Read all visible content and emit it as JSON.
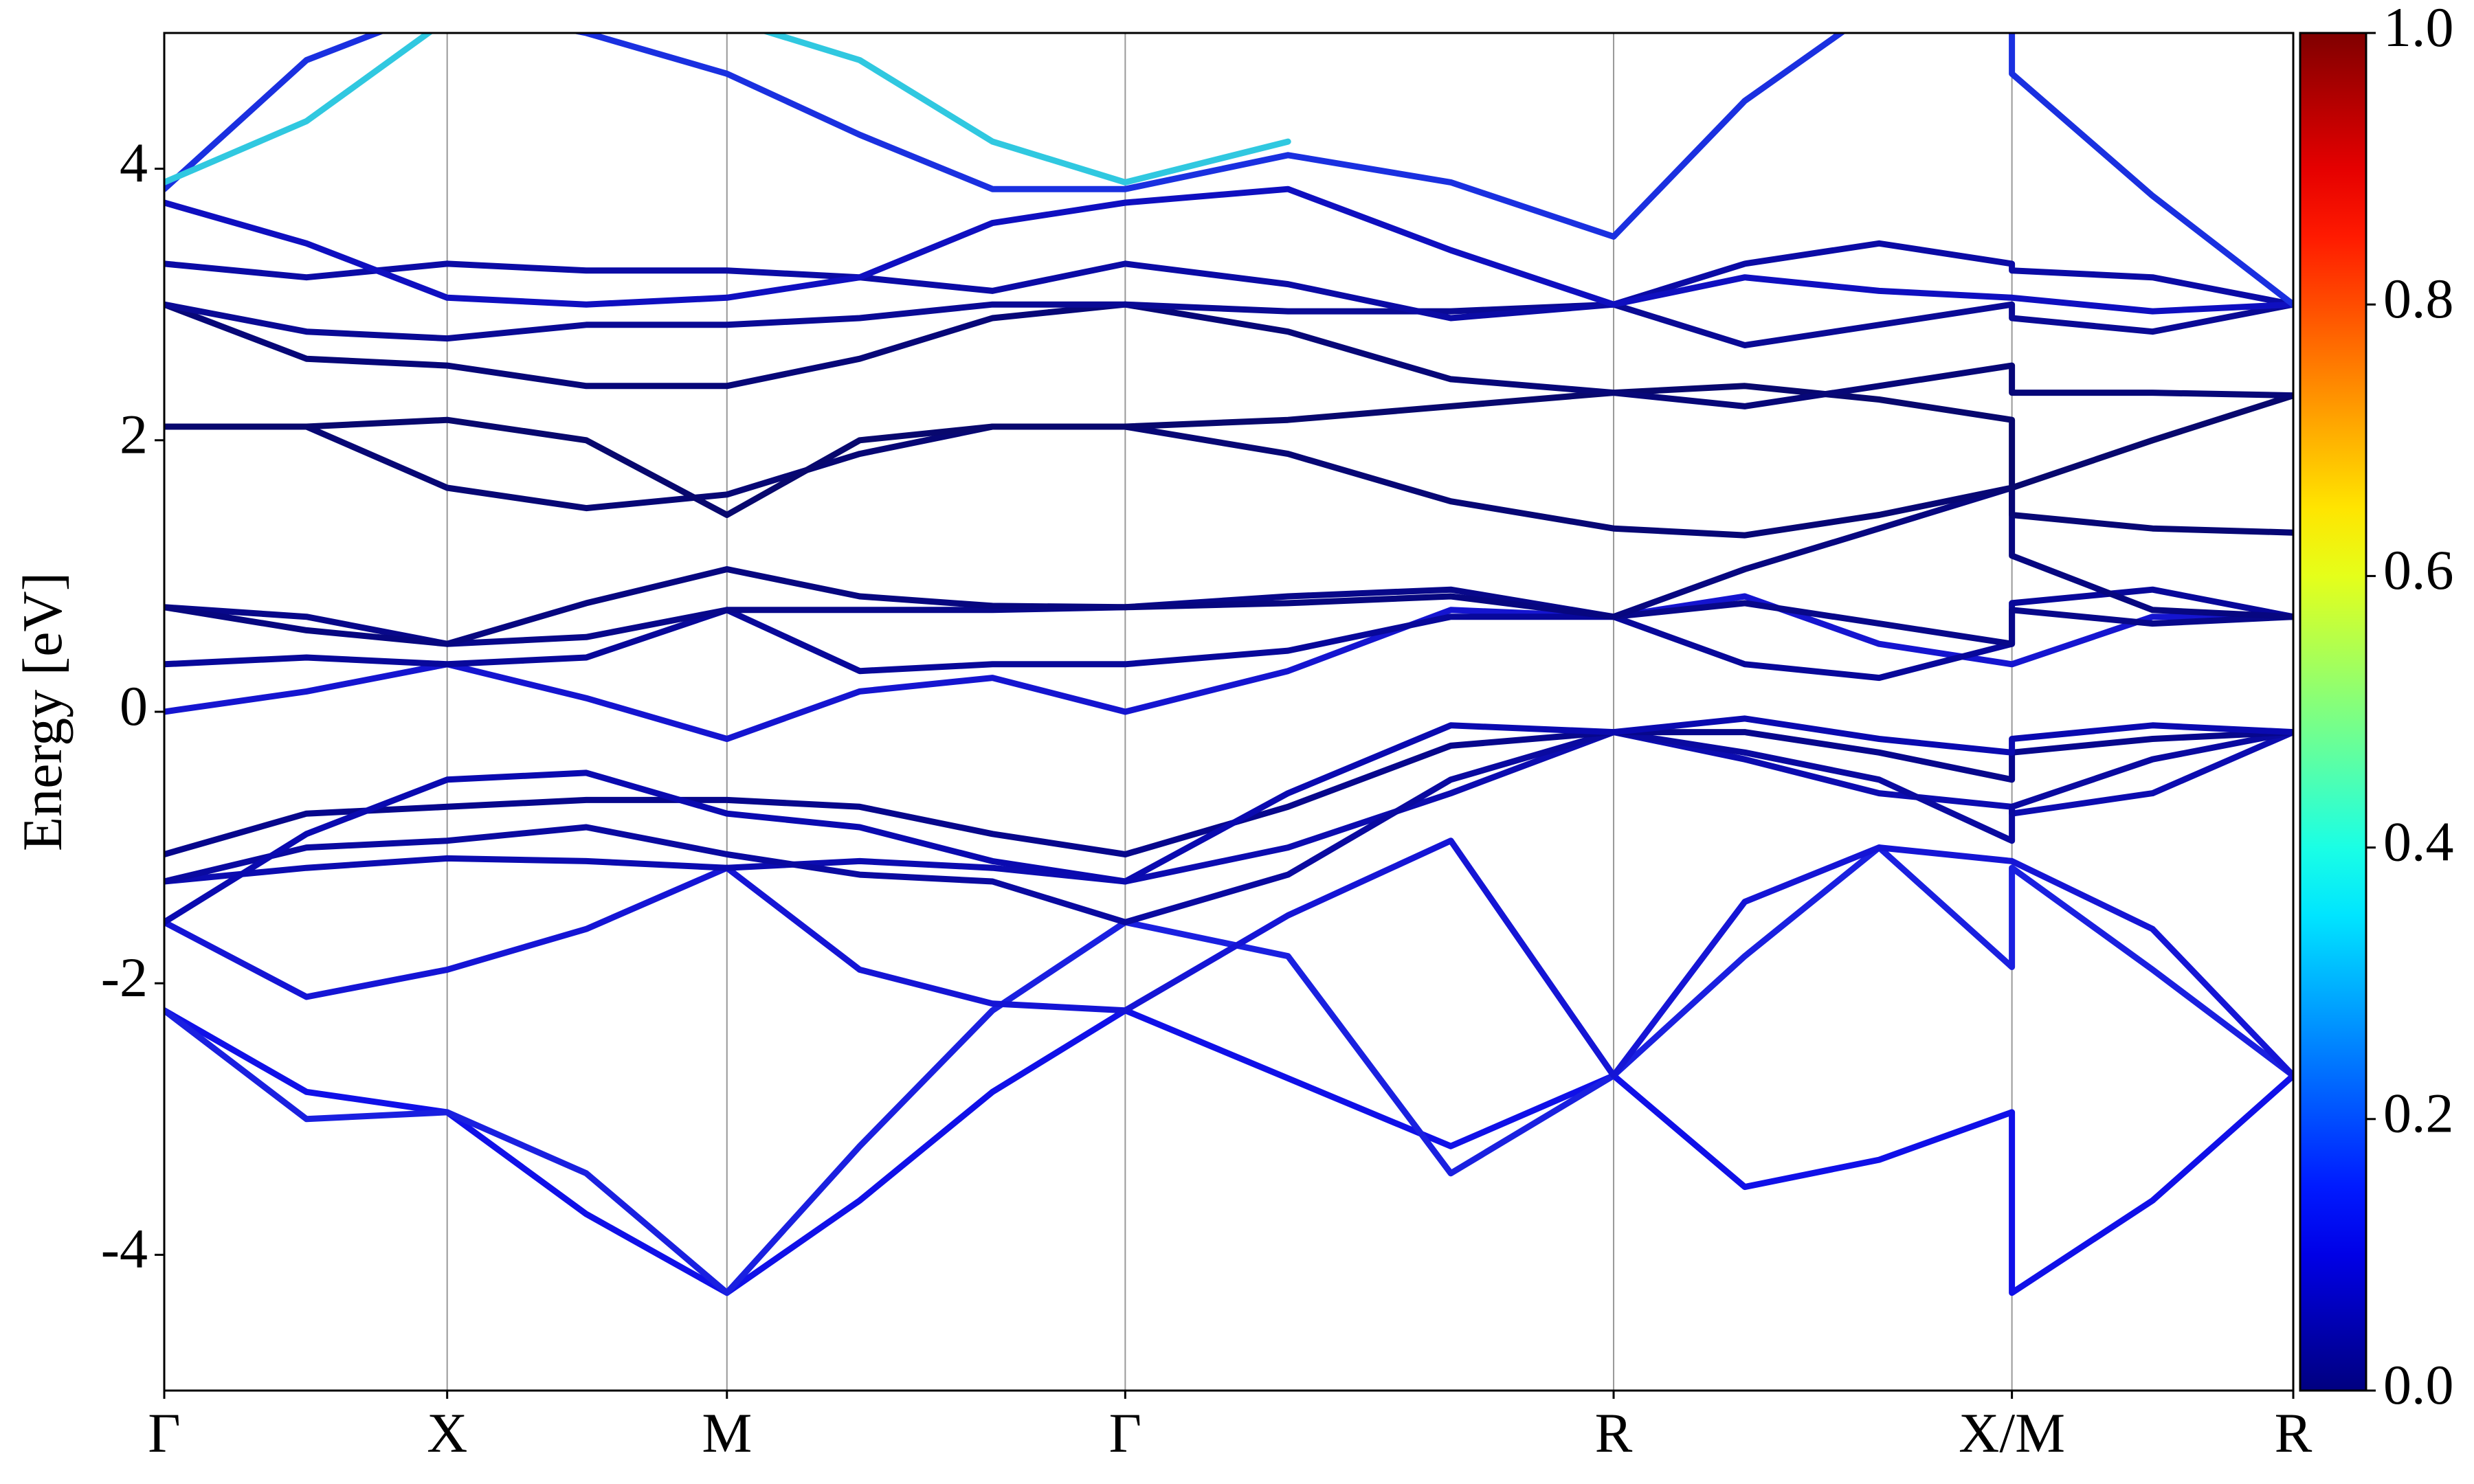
{
  "chart_data": {
    "type": "line",
    "ylabel": "Energy [eV]",
    "x": [
      0,
      0.9,
      1.79,
      2.67,
      3.56,
      4.4,
      5.24,
      6.08,
      7.11,
      8.14,
      9.17,
      10.0,
      10.85,
      11.69,
      11.69,
      12.58,
      13.47
    ],
    "xlim": [
      0,
      13.47
    ],
    "xticks": [
      {
        "value": 0,
        "label": "Γ"
      },
      {
        "value": 1.79,
        "label": "X"
      },
      {
        "value": 3.56,
        "label": "M"
      },
      {
        "value": 6.08,
        "label": "Γ"
      },
      {
        "value": 9.17,
        "label": "R"
      },
      {
        "value": 11.69,
        "label": "X/M"
      },
      {
        "value": 13.47,
        "label": "R"
      }
    ],
    "ylim": [
      -5,
      5
    ],
    "yticks": [
      -4,
      -2,
      0,
      2,
      4
    ],
    "grid": "x",
    "series": [
      {
        "color": "#1010e8",
        "values": [
          -2.2,
          -2.8,
          -2.95,
          -3.7,
          -4.28,
          -3.6,
          -2.8,
          -2.2,
          -2.7,
          -3.2,
          -2.68,
          -3.5,
          -3.3,
          -2.95,
          -4.28,
          -3.6,
          -2.68
        ]
      },
      {
        "color": "#1a20e0",
        "values": [
          -2.2,
          -3.0,
          -2.95,
          -3.4,
          -4.28,
          -3.2,
          -2.2,
          -1.55,
          -1.8,
          -3.4,
          -2.68,
          -1.8,
          -1.0,
          -1.88,
          -1.15,
          -1.9,
          -2.68
        ]
      },
      {
        "color": "#1515d5",
        "values": [
          -1.55,
          -2.1,
          -1.9,
          -1.6,
          -1.15,
          -1.9,
          -2.15,
          -2.2,
          -1.5,
          -0.95,
          -2.68,
          -1.4,
          -1.0,
          -1.1,
          -1.1,
          -1.6,
          -2.68
        ]
      },
      {
        "color": "#0c0cb0",
        "values": [
          -1.25,
          -1.15,
          -1.08,
          -1.1,
          -1.15,
          -1.1,
          -1.15,
          -1.25,
          -1.0,
          -0.6,
          -0.15,
          -0.35,
          -0.6,
          -0.7,
          -0.75,
          -0.6,
          -0.15
        ]
      },
      {
        "color": "#0a0aa0",
        "values": [
          -1.25,
          -1.0,
          -0.95,
          -0.85,
          -1.05,
          -1.2,
          -1.25,
          -1.55,
          -1.2,
          -0.5,
          -0.15,
          -0.3,
          -0.5,
          -0.95,
          -0.7,
          -0.35,
          -0.15
        ]
      },
      {
        "color": "#07078c",
        "values": [
          -1.05,
          -0.75,
          -0.7,
          -0.65,
          -0.65,
          -0.7,
          -0.9,
          -1.05,
          -0.7,
          -0.25,
          -0.15,
          -0.15,
          -0.3,
          -0.5,
          -0.3,
          -0.2,
          -0.15
        ]
      },
      {
        "color": "#0a0ab0",
        "values": [
          -1.55,
          -0.9,
          -0.5,
          -0.45,
          -0.75,
          -0.85,
          -1.1,
          -1.25,
          -0.6,
          -0.1,
          -0.15,
          -0.05,
          -0.2,
          -0.3,
          -0.2,
          -0.1,
          -0.15
        ]
      },
      {
        "color": "#1515d0",
        "values": [
          0.0,
          0.15,
          0.35,
          0.1,
          -0.2,
          0.15,
          0.25,
          0.0,
          0.3,
          0.75,
          0.7,
          0.85,
          0.5,
          0.35,
          0.35,
          0.7,
          0.7
        ]
      },
      {
        "color": "#08089a",
        "values": [
          0.35,
          0.4,
          0.35,
          0.4,
          0.75,
          0.3,
          0.35,
          0.35,
          0.45,
          0.7,
          0.7,
          0.35,
          0.25,
          0.5,
          0.8,
          0.9,
          0.7
        ]
      },
      {
        "color": "#08088a",
        "values": [
          0.77,
          0.7,
          0.5,
          0.55,
          0.75,
          0.75,
          0.75,
          0.77,
          0.85,
          0.9,
          0.7,
          0.8,
          0.65,
          0.5,
          0.75,
          0.65,
          0.7
        ]
      },
      {
        "color": "#070780",
        "values": [
          0.77,
          0.6,
          0.5,
          0.8,
          1.05,
          0.85,
          0.78,
          0.77,
          0.8,
          0.85,
          0.7,
          1.05,
          1.35,
          1.65,
          1.15,
          0.75,
          0.7
        ]
      },
      {
        "color": "#070775",
        "values": [
          2.1,
          2.1,
          1.65,
          1.5,
          1.6,
          1.9,
          2.1,
          2.1,
          1.9,
          1.55,
          1.35,
          1.3,
          1.45,
          1.65,
          1.45,
          1.35,
          1.32
        ]
      },
      {
        "color": "#08086e",
        "values": [
          2.1,
          2.1,
          2.15,
          2.0,
          1.45,
          2.0,
          2.1,
          2.1,
          2.15,
          2.25,
          2.35,
          2.4,
          2.3,
          2.15,
          1.65,
          2.0,
          2.33
        ]
      },
      {
        "color": "#070778",
        "values": [
          3.0,
          2.6,
          2.55,
          2.4,
          2.4,
          2.6,
          2.9,
          3.0,
          2.8,
          2.45,
          2.35,
          2.25,
          2.4,
          2.55,
          2.35,
          2.35,
          2.33
        ]
      },
      {
        "color": "#0a0a95",
        "values": [
          3.0,
          2.8,
          2.75,
          2.85,
          2.85,
          2.9,
          3.0,
          3.0,
          2.95,
          2.95,
          3.0,
          2.7,
          2.85,
          3.0,
          2.9,
          2.8,
          3.0
        ]
      },
      {
        "color": "#0b0ba5",
        "values": [
          3.3,
          3.2,
          3.3,
          3.25,
          3.25,
          3.2,
          3.1,
          3.3,
          3.15,
          2.9,
          3.0,
          3.3,
          3.45,
          3.3,
          3.25,
          3.2,
          3.0
        ]
      },
      {
        "color": "#0f0fc0",
        "values": [
          3.75,
          3.45,
          3.05,
          3.0,
          3.05,
          3.2,
          3.6,
          3.75,
          3.85,
          3.4,
          3.0,
          3.2,
          3.1,
          3.05,
          3.05,
          2.95,
          3.0
        ]
      },
      {
        "color": "#1a30e0",
        "values": [
          3.85,
          4.8,
          5.2,
          5.0,
          4.7,
          4.25,
          3.85,
          3.85,
          4.1,
          3.9,
          3.5,
          4.5,
          5.2,
          5.2,
          4.7,
          3.8,
          3.0
        ]
      },
      {
        "color": "#30c8e0",
        "values": [
          3.9,
          4.35,
          5.1,
          null,
          5.1,
          4.8,
          4.2,
          3.9,
          4.2,
          null,
          null,
          null,
          null,
          null,
          null,
          null,
          null
        ]
      }
    ],
    "colorbar": {
      "colormap": "jet",
      "lim": [
        0,
        1
      ],
      "ticks": [
        {
          "value": 0,
          "label": "0.0"
        },
        {
          "value": 0.2,
          "label": "0.2"
        },
        {
          "value": 0.4,
          "label": "0.4"
        },
        {
          "value": 0.6,
          "label": "0.6"
        },
        {
          "value": 0.8,
          "label": "0.8"
        },
        {
          "value": 1,
          "label": "1.0"
        }
      ]
    }
  }
}
